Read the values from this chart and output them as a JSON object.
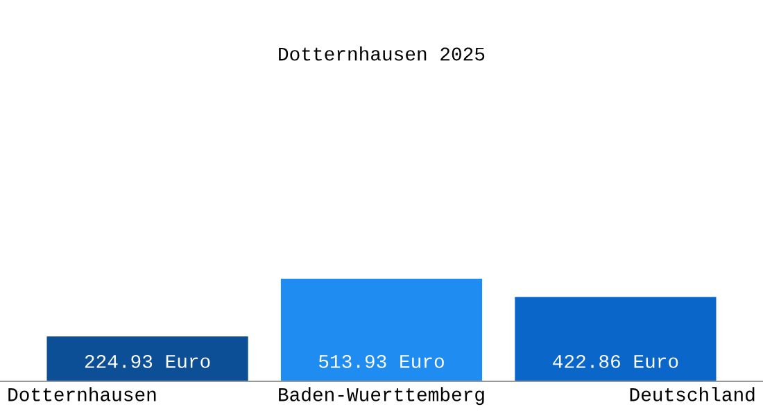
{
  "chart_data": {
    "type": "bar",
    "title": "Dotternhausen 2025",
    "categories": [
      "Dotternhausen",
      "Baden-Wuerttemberg",
      "Deutschland"
    ],
    "values": [
      224.93,
      513.93,
      422.86
    ],
    "colors": [
      "#0d4f96",
      "#1e8cf0",
      "#0a66c8"
    ],
    "value_labels": [
      "224.93 Euro",
      "513.93 Euro",
      "422.86 Euro"
    ]
  }
}
